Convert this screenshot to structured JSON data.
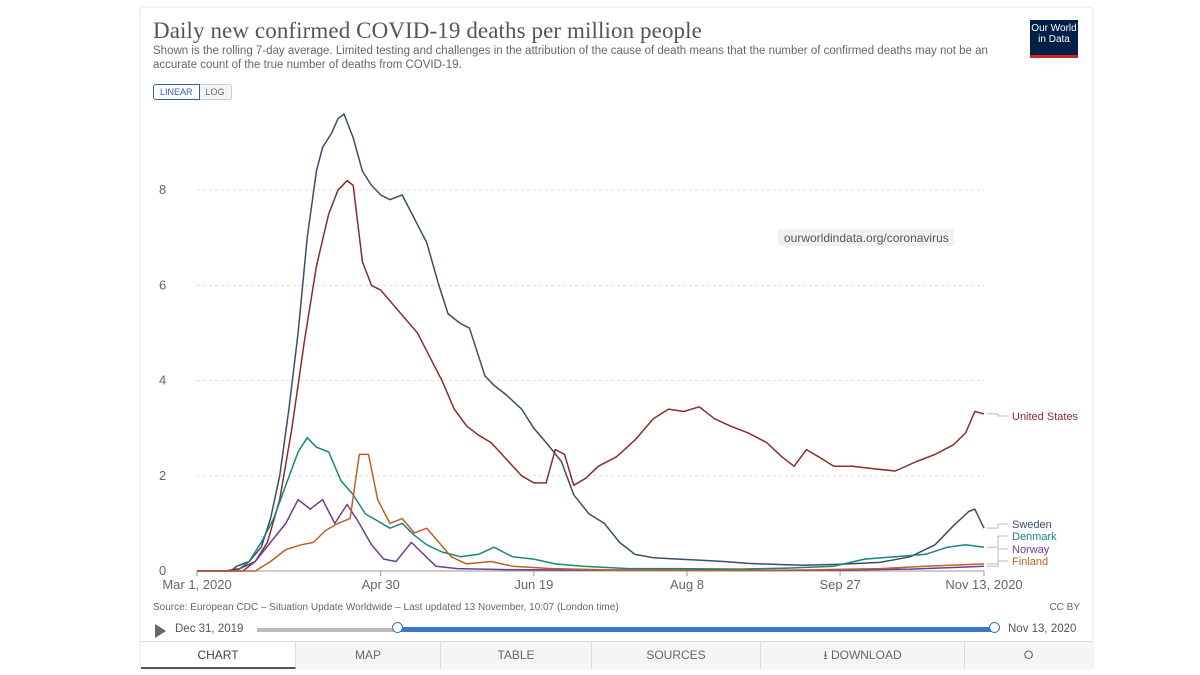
{
  "header": {
    "title": "Daily new confirmed COVID-19 deaths per million people",
    "subtitle": "Shown is the rolling 7-day average. Limited testing and challenges in the attribution of the cause of death means that the number of confirmed deaths may not be an accurate count of the true number of deaths from COVID-19.",
    "logo_line1": "Our World",
    "logo_line2": "in Data"
  },
  "scale": {
    "linear": "LINEAR",
    "log": "LOG",
    "selected": "LINEAR"
  },
  "watermark": "ourworldindata.org/coronavirus",
  "chart_data": {
    "type": "line",
    "y_ticks": [
      0,
      2,
      4,
      6,
      8
    ],
    "x_ticks": [
      "Mar 1, 2020",
      "Apr 30",
      "Jun 19",
      "Aug 8",
      "Sep 27",
      "Nov 13, 2020"
    ],
    "ylim": [
      0,
      9.6
    ],
    "xlim": [
      "2020-03-01",
      "2020-11-13"
    ],
    "grid": true,
    "legend": "right",
    "series": [
      {
        "name": "Sweden",
        "color": "#3c4e66",
        "points": [
          [
            "2020-03-01",
            0
          ],
          [
            "2020-03-12",
            0
          ],
          [
            "2020-03-14",
            0.1
          ],
          [
            "2020-03-18",
            0.2
          ],
          [
            "2020-03-22",
            0.5
          ],
          [
            "2020-03-25",
            1.1
          ],
          [
            "2020-03-28",
            2.0
          ],
          [
            "2020-03-31",
            3.4
          ],
          [
            "2020-04-03",
            5.0
          ],
          [
            "2020-04-06",
            7.0
          ],
          [
            "2020-04-09",
            8.4
          ],
          [
            "2020-04-11",
            8.9
          ],
          [
            "2020-04-14",
            9.2
          ],
          [
            "2020-04-16",
            9.5
          ],
          [
            "2020-04-18",
            9.6
          ],
          [
            "2020-04-21",
            9.1
          ],
          [
            "2020-04-24",
            8.4
          ],
          [
            "2020-04-27",
            8.1
          ],
          [
            "2020-04-30",
            7.9
          ],
          [
            "2020-05-03",
            7.8
          ],
          [
            "2020-05-07",
            7.9
          ],
          [
            "2020-05-11",
            7.4
          ],
          [
            "2020-05-15",
            6.9
          ],
          [
            "2020-05-19",
            6.0
          ],
          [
            "2020-05-22",
            5.4
          ],
          [
            "2020-05-26",
            5.2
          ],
          [
            "2020-05-29",
            5.1
          ],
          [
            "2020-06-03",
            4.1
          ],
          [
            "2020-06-06",
            3.9
          ],
          [
            "2020-06-10",
            3.7
          ],
          [
            "2020-06-15",
            3.4
          ],
          [
            "2020-06-19",
            3.0
          ],
          [
            "2020-06-23",
            2.7
          ],
          [
            "2020-06-28",
            2.3
          ],
          [
            "2020-07-02",
            1.6
          ],
          [
            "2020-07-07",
            1.2
          ],
          [
            "2020-07-12",
            1.0
          ],
          [
            "2020-07-17",
            0.6
          ],
          [
            "2020-07-22",
            0.35
          ],
          [
            "2020-07-28",
            0.28
          ],
          [
            "2020-08-05",
            0.25
          ],
          [
            "2020-08-12",
            0.23
          ],
          [
            "2020-08-20",
            0.2
          ],
          [
            "2020-08-28",
            0.16
          ],
          [
            "2020-09-05",
            0.14
          ],
          [
            "2020-09-15",
            0.12
          ],
          [
            "2020-09-27",
            0.14
          ],
          [
            "2020-10-10",
            0.18
          ],
          [
            "2020-10-20",
            0.3
          ],
          [
            "2020-10-28",
            0.55
          ],
          [
            "2020-11-03",
            0.95
          ],
          [
            "2020-11-08",
            1.25
          ],
          [
            "2020-11-10",
            1.3
          ],
          [
            "2020-11-13",
            0.9
          ]
        ]
      },
      {
        "name": "United States",
        "color": "#8a2c2c",
        "points": [
          [
            "2020-03-01",
            0
          ],
          [
            "2020-03-10",
            0
          ],
          [
            "2020-03-15",
            0.05
          ],
          [
            "2020-03-20",
            0.2
          ],
          [
            "2020-03-24",
            0.6
          ],
          [
            "2020-03-28",
            1.5
          ],
          [
            "2020-04-01",
            3.0
          ],
          [
            "2020-04-05",
            4.8
          ],
          [
            "2020-04-09",
            6.4
          ],
          [
            "2020-04-13",
            7.5
          ],
          [
            "2020-04-16",
            8.0
          ],
          [
            "2020-04-19",
            8.2
          ],
          [
            "2020-04-21",
            8.1
          ],
          [
            "2020-04-24",
            6.5
          ],
          [
            "2020-04-27",
            6.0
          ],
          [
            "2020-04-30",
            5.9
          ],
          [
            "2020-05-04",
            5.6
          ],
          [
            "2020-05-08",
            5.3
          ],
          [
            "2020-05-12",
            5.0
          ],
          [
            "2020-05-16",
            4.5
          ],
          [
            "2020-05-20",
            4.0
          ],
          [
            "2020-05-24",
            3.4
          ],
          [
            "2020-05-28",
            3.05
          ],
          [
            "2020-06-01",
            2.85
          ],
          [
            "2020-06-05",
            2.7
          ],
          [
            "2020-06-10",
            2.35
          ],
          [
            "2020-06-15",
            2.0
          ],
          [
            "2020-06-19",
            1.85
          ],
          [
            "2020-06-23",
            1.85
          ],
          [
            "2020-06-26",
            2.55
          ],
          [
            "2020-06-29",
            2.45
          ],
          [
            "2020-07-02",
            1.8
          ],
          [
            "2020-07-06",
            1.95
          ],
          [
            "2020-07-10",
            2.2
          ],
          [
            "2020-07-16",
            2.4
          ],
          [
            "2020-07-22",
            2.75
          ],
          [
            "2020-07-28",
            3.2
          ],
          [
            "2020-08-02",
            3.4
          ],
          [
            "2020-08-07",
            3.35
          ],
          [
            "2020-08-12",
            3.45
          ],
          [
            "2020-08-17",
            3.2
          ],
          [
            "2020-08-22",
            3.05
          ],
          [
            "2020-08-28",
            2.9
          ],
          [
            "2020-09-03",
            2.7
          ],
          [
            "2020-09-08",
            2.4
          ],
          [
            "2020-09-12",
            2.2
          ],
          [
            "2020-09-16",
            2.55
          ],
          [
            "2020-09-20",
            2.4
          ],
          [
            "2020-09-25",
            2.2
          ],
          [
            "2020-10-01",
            2.2
          ],
          [
            "2020-10-08",
            2.15
          ],
          [
            "2020-10-15",
            2.1
          ],
          [
            "2020-10-22",
            2.3
          ],
          [
            "2020-10-28",
            2.45
          ],
          [
            "2020-11-03",
            2.65
          ],
          [
            "2020-11-07",
            2.9
          ],
          [
            "2020-11-10",
            3.35
          ],
          [
            "2020-11-13",
            3.3
          ]
        ]
      },
      {
        "name": "Denmark",
        "color": "#18857e",
        "points": [
          [
            "2020-03-01",
            0
          ],
          [
            "2020-03-14",
            0
          ],
          [
            "2020-03-18",
            0.2
          ],
          [
            "2020-03-22",
            0.6
          ],
          [
            "2020-03-26",
            1.1
          ],
          [
            "2020-03-30",
            1.8
          ],
          [
            "2020-04-03",
            2.5
          ],
          [
            "2020-04-06",
            2.8
          ],
          [
            "2020-04-09",
            2.6
          ],
          [
            "2020-04-13",
            2.5
          ],
          [
            "2020-04-17",
            1.9
          ],
          [
            "2020-04-21",
            1.6
          ],
          [
            "2020-04-25",
            1.2
          ],
          [
            "2020-04-29",
            1.05
          ],
          [
            "2020-05-03",
            0.9
          ],
          [
            "2020-05-07",
            1.0
          ],
          [
            "2020-05-11",
            0.75
          ],
          [
            "2020-05-15",
            0.55
          ],
          [
            "2020-05-20",
            0.4
          ],
          [
            "2020-05-26",
            0.3
          ],
          [
            "2020-06-01",
            0.35
          ],
          [
            "2020-06-06",
            0.5
          ],
          [
            "2020-06-12",
            0.3
          ],
          [
            "2020-06-19",
            0.25
          ],
          [
            "2020-06-26",
            0.15
          ],
          [
            "2020-07-05",
            0.1
          ],
          [
            "2020-07-20",
            0.05
          ],
          [
            "2020-08-05",
            0.05
          ],
          [
            "2020-08-25",
            0.04
          ],
          [
            "2020-09-10",
            0.06
          ],
          [
            "2020-09-25",
            0.1
          ],
          [
            "2020-10-05",
            0.25
          ],
          [
            "2020-10-15",
            0.3
          ],
          [
            "2020-10-25",
            0.35
          ],
          [
            "2020-11-01",
            0.5
          ],
          [
            "2020-11-07",
            0.55
          ],
          [
            "2020-11-13",
            0.5
          ]
        ]
      },
      {
        "name": "Norway",
        "color": "#6d3e91",
        "points": [
          [
            "2020-03-01",
            0
          ],
          [
            "2020-03-16",
            0
          ],
          [
            "2020-03-20",
            0.2
          ],
          [
            "2020-03-25",
            0.6
          ],
          [
            "2020-03-30",
            1.0
          ],
          [
            "2020-04-03",
            1.5
          ],
          [
            "2020-04-07",
            1.3
          ],
          [
            "2020-04-11",
            1.5
          ],
          [
            "2020-04-15",
            1.0
          ],
          [
            "2020-04-19",
            1.4
          ],
          [
            "2020-04-23",
            1.0
          ],
          [
            "2020-04-27",
            0.55
          ],
          [
            "2020-05-01",
            0.25
          ],
          [
            "2020-05-05",
            0.2
          ],
          [
            "2020-05-10",
            0.6
          ],
          [
            "2020-05-14",
            0.35
          ],
          [
            "2020-05-18",
            0.1
          ],
          [
            "2020-05-25",
            0.05
          ],
          [
            "2020-06-10",
            0.03
          ],
          [
            "2020-07-01",
            0.02
          ],
          [
            "2020-08-01",
            0.02
          ],
          [
            "2020-09-01",
            0.01
          ],
          [
            "2020-10-01",
            0.02
          ],
          [
            "2020-10-20",
            0.04
          ],
          [
            "2020-11-05",
            0.08
          ],
          [
            "2020-11-13",
            0.1
          ]
        ]
      },
      {
        "name": "Finland",
        "color": "#c15e26",
        "points": [
          [
            "2020-03-01",
            0
          ],
          [
            "2020-03-20",
            0
          ],
          [
            "2020-03-25",
            0.2
          ],
          [
            "2020-03-30",
            0.45
          ],
          [
            "2020-04-04",
            0.55
          ],
          [
            "2020-04-08",
            0.6
          ],
          [
            "2020-04-12",
            0.85
          ],
          [
            "2020-04-16",
            1.0
          ],
          [
            "2020-04-20",
            1.1
          ],
          [
            "2020-04-23",
            2.45
          ],
          [
            "2020-04-26",
            2.45
          ],
          [
            "2020-04-29",
            1.5
          ],
          [
            "2020-05-03",
            1.0
          ],
          [
            "2020-05-07",
            1.1
          ],
          [
            "2020-05-11",
            0.8
          ],
          [
            "2020-05-15",
            0.9
          ],
          [
            "2020-05-19",
            0.6
          ],
          [
            "2020-05-23",
            0.3
          ],
          [
            "2020-05-28",
            0.15
          ],
          [
            "2020-06-05",
            0.2
          ],
          [
            "2020-06-12",
            0.1
          ],
          [
            "2020-06-25",
            0.05
          ],
          [
            "2020-07-15",
            0.02
          ],
          [
            "2020-08-15",
            0.01
          ],
          [
            "2020-09-15",
            0.02
          ],
          [
            "2020-10-10",
            0.05
          ],
          [
            "2020-10-25",
            0.1
          ],
          [
            "2020-11-13",
            0.15
          ]
        ]
      }
    ]
  },
  "footer": {
    "source": "Source: European CDC – Situation Update Worldwide – Last updated 13 November, 10:07 (London time)",
    "license": "CC BY"
  },
  "timeline": {
    "start": "Dec 31, 2019",
    "end": "Nov 13, 2020"
  },
  "tabs": [
    "CHART",
    "MAP",
    "TABLE",
    "SOURCES",
    "DOWNLOAD",
    ""
  ],
  "active_tab": "CHART"
}
